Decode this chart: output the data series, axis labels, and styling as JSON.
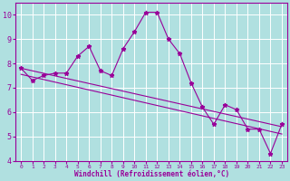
{
  "x": [
    0,
    1,
    2,
    3,
    4,
    5,
    6,
    7,
    8,
    9,
    10,
    11,
    12,
    13,
    14,
    15,
    16,
    17,
    18,
    19,
    20,
    21,
    22,
    23
  ],
  "y_main": [
    7.8,
    7.3,
    7.5,
    7.6,
    7.6,
    8.3,
    8.7,
    7.7,
    7.5,
    8.6,
    9.3,
    10.1,
    10.1,
    9.0,
    8.4,
    7.2,
    6.2,
    5.5,
    6.3,
    6.1,
    5.3,
    5.3,
    4.3,
    5.5
  ],
  "y_trend1_start": 7.8,
  "y_trend1_end": 5.4,
  "y_trend2_start": 7.55,
  "y_trend2_end": 5.1,
  "line_color": "#990099",
  "bg_color": "#b0e0e0",
  "grid_color": "#ffffff",
  "xlabel": "Windchill (Refroidissement éolien,°C)",
  "ylim": [
    4,
    10.5
  ],
  "xlim": [
    -0.5,
    23.5
  ],
  "yticks": [
    4,
    5,
    6,
    7,
    8,
    9,
    10
  ],
  "xticks": [
    0,
    1,
    2,
    3,
    4,
    5,
    6,
    7,
    8,
    9,
    10,
    11,
    12,
    13,
    14,
    15,
    16,
    17,
    18,
    19,
    20,
    21,
    22,
    23
  ]
}
